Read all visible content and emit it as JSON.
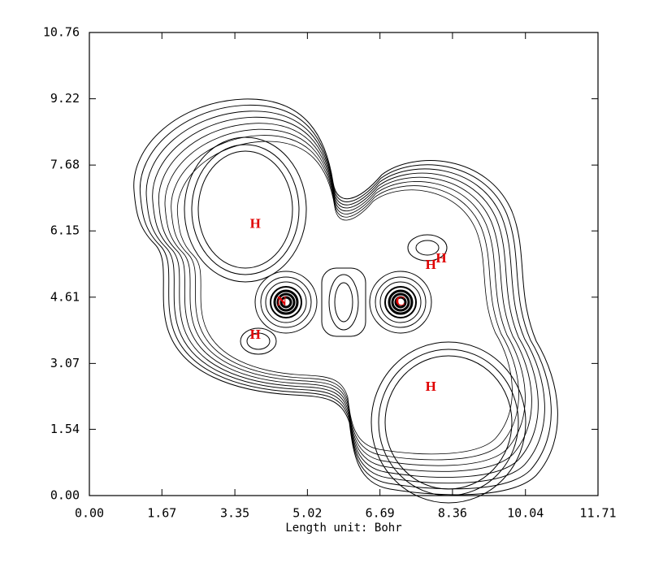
{
  "chart_data": {
    "type": "contour",
    "x_label": "Length unit: Bohr",
    "xlim": [
      0,
      11.71
    ],
    "ylim": [
      0,
      10.76
    ],
    "xticks": [
      {
        "value": 0,
        "label": "0.00"
      },
      1.67,
      3.35,
      5.02,
      6.69,
      8.36,
      10.04,
      11.71
    ],
    "yticks": [
      {
        "value": 0,
        "label": "0.00"
      },
      1.54,
      3.07,
      4.61,
      6.15,
      7.68,
      9.22,
      10.76
    ],
    "atoms": [
      {
        "label": "N",
        "x": 4.43,
        "y": 4.49
      },
      {
        "label": "C",
        "x": 7.16,
        "y": 4.49
      },
      {
        "label": "H",
        "x": 3.82,
        "y": 6.29
      },
      {
        "label": "H",
        "x": 7.86,
        "y": 5.34
      },
      {
        "label": "H",
        "x": 8.1,
        "y": 5.49
      },
      {
        "label": "H",
        "x": 3.82,
        "y": 3.72
      },
      {
        "label": "H",
        "x": 7.86,
        "y": 2.51
      }
    ]
  }
}
